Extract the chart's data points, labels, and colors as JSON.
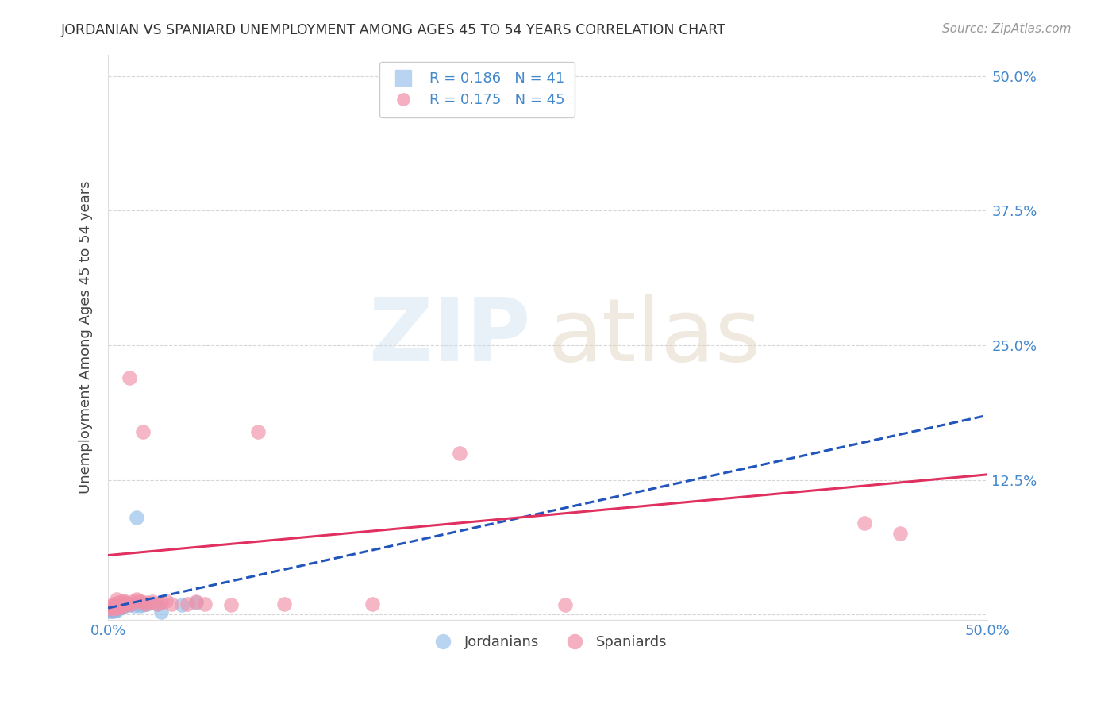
{
  "title": "JORDANIAN VS SPANIARD UNEMPLOYMENT AMONG AGES 45 TO 54 YEARS CORRELATION CHART",
  "source": "Source: ZipAtlas.com",
  "ylabel": "Unemployment Among Ages 45 to 54 years",
  "xmin": 0.0,
  "xmax": 0.5,
  "ymin": -0.005,
  "ymax": 0.52,
  "jordanian_color": "#90bce8",
  "spaniard_color": "#f090a8",
  "jordanian_line_color": "#2255bb",
  "spaniard_line_color": "#e03060",
  "background_color": "#ffffff",
  "grid_color": "#cccccc",
  "title_color": "#333333",
  "jordanian_x": [
    0.001,
    0.001,
    0.001,
    0.002,
    0.002,
    0.002,
    0.002,
    0.003,
    0.003,
    0.003,
    0.003,
    0.003,
    0.004,
    0.004,
    0.004,
    0.004,
    0.005,
    0.005,
    0.005,
    0.005,
    0.005,
    0.006,
    0.006,
    0.007,
    0.007,
    0.008,
    0.008,
    0.009,
    0.01,
    0.011,
    0.012,
    0.013,
    0.015,
    0.016,
    0.018,
    0.02,
    0.022,
    0.028,
    0.03,
    0.042,
    0.05
  ],
  "jordanian_y": [
    0.005,
    0.004,
    0.003,
    0.006,
    0.005,
    0.004,
    0.003,
    0.007,
    0.006,
    0.005,
    0.004,
    0.003,
    0.007,
    0.006,
    0.005,
    0.004,
    0.008,
    0.007,
    0.006,
    0.005,
    0.004,
    0.008,
    0.006,
    0.009,
    0.007,
    0.009,
    0.007,
    0.008,
    0.009,
    0.01,
    0.009,
    0.01,
    0.008,
    0.09,
    0.008,
    0.009,
    0.01,
    0.01,
    0.002,
    0.009,
    0.011
  ],
  "spaniard_x": [
    0.001,
    0.002,
    0.002,
    0.003,
    0.003,
    0.004,
    0.004,
    0.005,
    0.005,
    0.005,
    0.006,
    0.006,
    0.007,
    0.007,
    0.008,
    0.008,
    0.009,
    0.01,
    0.01,
    0.011,
    0.012,
    0.013,
    0.014,
    0.016,
    0.017,
    0.019,
    0.02,
    0.021,
    0.022,
    0.025,
    0.028,
    0.03,
    0.033,
    0.036,
    0.045,
    0.05,
    0.055,
    0.07,
    0.085,
    0.1,
    0.15,
    0.2,
    0.26,
    0.43,
    0.45
  ],
  "spaniard_y": [
    0.006,
    0.008,
    0.005,
    0.01,
    0.007,
    0.009,
    0.006,
    0.014,
    0.008,
    0.006,
    0.011,
    0.008,
    0.01,
    0.007,
    0.012,
    0.009,
    0.013,
    0.011,
    0.009,
    0.01,
    0.22,
    0.01,
    0.012,
    0.014,
    0.013,
    0.012,
    0.17,
    0.01,
    0.011,
    0.012,
    0.01,
    0.011,
    0.013,
    0.01,
    0.01,
    0.012,
    0.01,
    0.009,
    0.17,
    0.01,
    0.01,
    0.15,
    0.009,
    0.085,
    0.075
  ],
  "jordan_line_x0": 0.0,
  "jordan_line_y0": 0.006,
  "jordan_line_x1": 0.5,
  "jordan_line_y1": 0.185,
  "spain_line_x0": 0.0,
  "spain_line_y0": 0.055,
  "spain_line_x1": 0.5,
  "spain_line_y1": 0.13
}
